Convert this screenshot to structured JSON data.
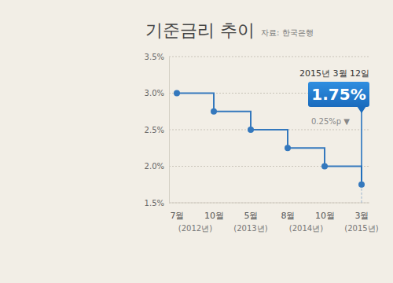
{
  "chart_data": {
    "type": "line",
    "title": "기준금리 추이",
    "source": "자료: 한국은행",
    "categories": [
      "7월",
      "10월",
      "5월",
      "8월",
      "10월",
      "3월"
    ],
    "x_groups": [
      {
        "label": "(2012년)",
        "size": 2
      },
      {
        "label": "(2013년)",
        "size": 1
      },
      {
        "label": "(2014년)",
        "size": 2
      },
      {
        "label": "(2015년)",
        "size": 1
      }
    ],
    "values": [
      3.0,
      2.75,
      2.5,
      2.25,
      2.0,
      1.75
    ],
    "color": "#3478bd",
    "line_style": "step",
    "marker": "circle",
    "grid": true,
    "ylim": [
      1.5,
      3.5
    ],
    "yticks": [
      {
        "value": 1.5,
        "label": "1.5%"
      },
      {
        "value": 2.0,
        "label": "2.0%"
      },
      {
        "value": 2.5,
        "label": "2.5%"
      },
      {
        "value": 3.0,
        "label": "3.0%"
      },
      {
        "value": 3.5,
        "label": "3.5%"
      }
    ],
    "callout": {
      "date": "2015년 3월 12일",
      "value": 1.75,
      "label": "1.75%",
      "change": "0.25%p ▼"
    }
  }
}
